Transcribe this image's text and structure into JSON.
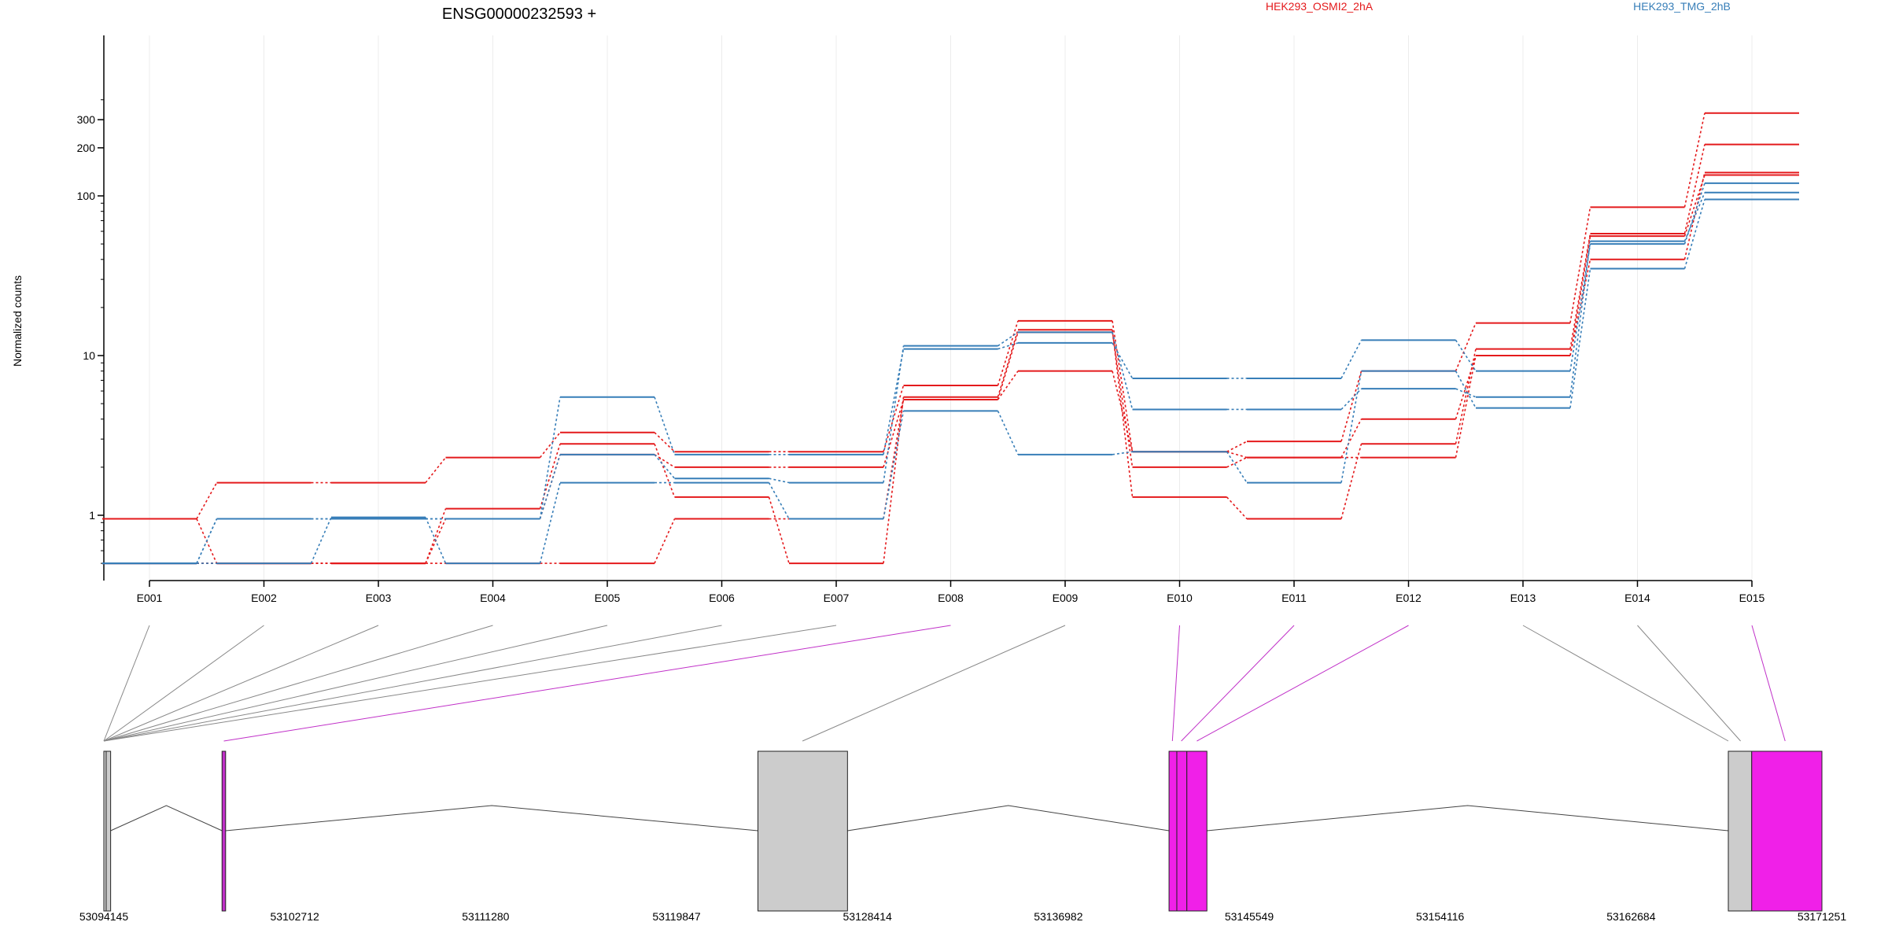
{
  "chart_data": {
    "type": "line",
    "title": "ENSG00000232593 +",
    "ylabel": "Normalized counts",
    "y_scale": "log",
    "y_ticks": [
      "1",
      "10",
      "100",
      "200",
      "300"
    ],
    "exons": [
      "E001",
      "E002",
      "E003",
      "E004",
      "E005",
      "E006",
      "E007",
      "E008",
      "E009",
      "E010",
      "E011",
      "E012",
      "E013",
      "E014",
      "E015"
    ],
    "series_colors": {
      "HEK293_OSMI2_2hA": "#e41a1c",
      "HEK293_TMG_2hB": "#377eb8"
    },
    "legend": [
      "HEK293_OSMI2_2hA",
      "HEK293_TMG_2hB"
    ],
    "series": [
      {
        "group": "HEK293_OSMI2_2hA",
        "values": [
          0.95,
          1.6,
          1.6,
          2.3,
          3.3,
          2.5,
          2.5,
          6.5,
          16.5,
          2.5,
          2.9,
          8.0,
          16.0,
          85,
          330
        ]
      },
      {
        "group": "HEK293_OSMI2_2hA",
        "values": [
          0.95,
          0.5,
          0.5,
          1.1,
          2.8,
          1.3,
          0.5,
          5.5,
          14.5,
          1.3,
          0.95,
          2.8,
          11.0,
          58,
          210
        ]
      },
      {
        "group": "HEK293_OSMI2_2hA",
        "values": [
          0.5,
          0.5,
          0.5,
          0.5,
          0.5,
          0.95,
          0.95,
          5.3,
          8.0,
          2.5,
          2.3,
          4.0,
          10.0,
          40,
          140
        ]
      },
      {
        "group": "HEK293_OSMI2_2hA",
        "values": [
          0.5,
          0.5,
          0.5,
          0.95,
          2.4,
          2.0,
          2.0,
          5.3,
          14.0,
          2.0,
          2.3,
          2.3,
          10.0,
          56,
          135
        ]
      },
      {
        "group": "HEK293_TMG_2hB",
        "values": [
          0.5,
          0.95,
          0.95,
          0.95,
          5.5,
          2.4,
          2.4,
          11.0,
          12.0,
          7.2,
          7.2,
          12.5,
          8.0,
          50,
          120
        ]
      },
      {
        "group": "HEK293_TMG_2hB",
        "values": [
          0.5,
          0.95,
          0.95,
          0.95,
          2.4,
          1.7,
          1.6,
          11.5,
          14.0,
          4.6,
          4.6,
          6.2,
          5.5,
          52,
          105
        ]
      },
      {
        "group": "HEK293_TMG_2hB",
        "values": [
          0.5,
          0.5,
          0.97,
          0.5,
          1.6,
          1.6,
          0.95,
          4.5,
          2.4,
          2.5,
          1.6,
          8.0,
          4.7,
          35,
          95
        ]
      }
    ],
    "genomic_axis": {
      "ticks": [
        "53094145",
        "53102712",
        "53111280",
        "53119847",
        "53128414",
        "53136982",
        "53145549",
        "53154116",
        "53162684",
        "53171251"
      ],
      "exon_blocks": [
        {
          "exon": "E001",
          "start": 53094145,
          "end": 53094250,
          "color": "#cccccc"
        },
        {
          "exon": "E004",
          "start": 53094250,
          "end": 53094450,
          "color": "#cccccc"
        },
        {
          "exon": "E008",
          "start": 53099450,
          "end": 53099610,
          "color": "#c030c8"
        },
        {
          "exon": "E009",
          "start": 53123500,
          "end": 53127520,
          "color": "#cccccc"
        },
        {
          "exon": "E010",
          "start": 53141950,
          "end": 53142300,
          "color": "#f020e8"
        },
        {
          "exon": "E011",
          "start": 53142300,
          "end": 53142750,
          "color": "#f020e8"
        },
        {
          "exon": "E012",
          "start": 53142750,
          "end": 53143650,
          "color": "#f020e8"
        },
        {
          "exon": "E014",
          "start": 53167050,
          "end": 53168100,
          "color": "#cccccc"
        },
        {
          "exon": "E015",
          "start": 53168100,
          "end": 53171251,
          "color": "#f020e8"
        }
      ],
      "links": [
        {
          "exon": "E001",
          "target": 53094145,
          "color": "#888888"
        },
        {
          "exon": "E002",
          "target": 53094145,
          "color": "#888888"
        },
        {
          "exon": "E003",
          "target": 53094145,
          "color": "#888888"
        },
        {
          "exon": "E004",
          "target": 53094145,
          "color": "#888888"
        },
        {
          "exon": "E005",
          "target": 53094145,
          "color": "#888888"
        },
        {
          "exon": "E006",
          "target": 53094145,
          "color": "#888888"
        },
        {
          "exon": "E007",
          "target": 53094145,
          "color": "#888888"
        },
        {
          "exon": "E008",
          "target": 53099530,
          "color": "#c030c8"
        },
        {
          "exon": "E009",
          "target": 53125500,
          "color": "#888888"
        },
        {
          "exon": "E010",
          "target": 53142100,
          "color": "#c030c8"
        },
        {
          "exon": "E011",
          "target": 53142500,
          "color": "#c030c8"
        },
        {
          "exon": "E012",
          "target": 53143200,
          "color": "#c030c8"
        },
        {
          "exon": "E013",
          "target": 53167050,
          "color": "#888888"
        },
        {
          "exon": "E014",
          "target": 53167600,
          "color": "#888888"
        },
        {
          "exon": "E015",
          "target": 53169600,
          "color": "#c030c8"
        }
      ]
    }
  }
}
